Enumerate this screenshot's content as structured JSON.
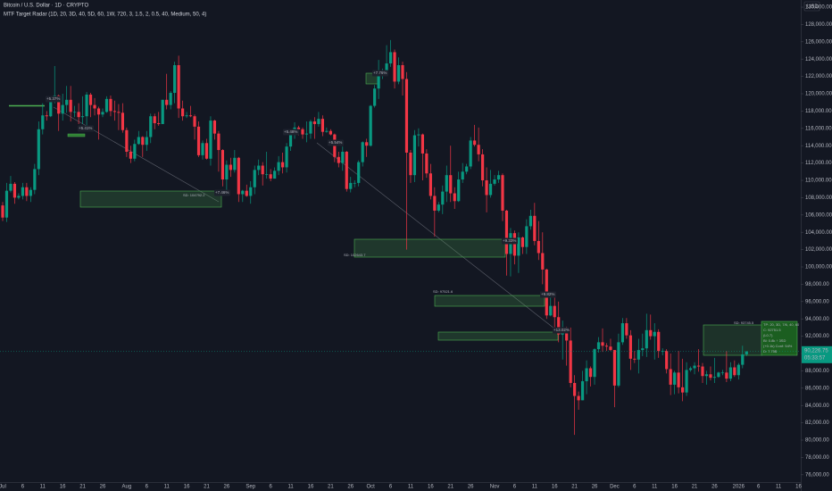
{
  "chart_data": {
    "type": "candlestick",
    "title": "Bitcoin / U.S. Dollar · 1D · CRYPTO",
    "subtitle": "MTF Target Radar (1D, 20, 3D, 40, 5D, 60, 1W, 720, 3, 1.5, 2, 0.5, 40, Medium, 50, 4)",
    "currency": "USD",
    "up_color": "#089981",
    "down_color": "#f23645",
    "grid": false,
    "categories": [
      "Jul",
      null,
      null,
      null,
      null,
      "6",
      null,
      null,
      null,
      null,
      "11",
      null,
      null,
      null,
      null,
      "16",
      null,
      null,
      null,
      null,
      "21",
      null,
      null,
      null,
      null,
      "26",
      null,
      null,
      null,
      null,
      null,
      "Aug",
      null,
      null,
      null,
      null,
      "6",
      null,
      null,
      null,
      null,
      "11",
      null,
      null,
      null,
      null,
      "16",
      null,
      null,
      null,
      null,
      "21",
      null,
      null,
      null,
      null,
      "26",
      null,
      null,
      null,
      null,
      null,
      "Sep",
      null,
      null,
      null,
      null,
      "6",
      null,
      null,
      null,
      null,
      "11",
      null,
      null,
      null,
      null,
      "16",
      null,
      null,
      null,
      null,
      "21",
      null,
      null,
      null,
      null,
      "26",
      null,
      null,
      null,
      null,
      "Oct",
      null,
      null,
      null,
      null,
      "6",
      null,
      null,
      null,
      null,
      "11",
      null,
      null,
      null,
      null,
      "16",
      null,
      null,
      null,
      null,
      "21",
      null,
      null,
      null,
      null,
      "26",
      null,
      null,
      null,
      null,
      null,
      "Nov",
      null,
      null,
      null,
      null,
      "6",
      null,
      null,
      null,
      null,
      "11",
      null,
      null,
      null,
      null,
      "16",
      null,
      null,
      null,
      null,
      "21",
      null,
      null,
      null,
      null,
      "26",
      null,
      null,
      null,
      null,
      "Dec",
      null,
      null,
      null,
      null,
      "6",
      null,
      null,
      null,
      null,
      "11",
      null,
      null,
      null,
      null,
      "16",
      null,
      null,
      null,
      null,
      "21",
      null,
      null,
      null,
      null,
      "26",
      null,
      null,
      null,
      null,
      null,
      "2026",
      null,
      null,
      null,
      null,
      "6",
      null,
      null,
      null,
      null,
      "11",
      null,
      null,
      null,
      null,
      "16"
    ],
    "open": [
      107100,
      105700,
      108800,
      109600,
      108000,
      108200,
      109200,
      108200,
      108900,
      111300,
      115900,
      117500,
      117400,
      119100,
      119800,
      117700,
      118700,
      119300,
      117900,
      117900,
      117300,
      117400,
      119900,
      118700,
      118300,
      117600,
      117900,
      119400,
      118000,
      117900,
      117800,
      115800,
      113300,
      112500,
      114200,
      115000,
      114100,
      115000,
      117400,
      116600,
      116500,
      119300,
      118700,
      120100,
      123300,
      118300,
      117400,
      117500,
      117400,
      116200,
      112900,
      114300,
      112500,
      116900,
      115400,
      113500,
      110100,
      111800,
      111200,
      112600,
      108400,
      108800,
      108200,
      109200,
      111200,
      111700,
      110700,
      110700,
      110200,
      111100,
      112100,
      111500,
      113900,
      115500,
      116100,
      115900,
      115300,
      115400,
      116800,
      116500,
      117100,
      115600,
      115700,
      115300,
      112700,
      112000,
      113300,
      109000,
      109700,
      109700,
      112100,
      114400,
      114000,
      118600,
      120600,
      122300,
      122400,
      123500,
      124800,
      121400,
      123300,
      121700,
      113200,
      110600,
      115200,
      115300,
      113100,
      110800,
      108200,
      106500,
      107200,
      108700,
      110600,
      108500,
      107600,
      110100,
      111000,
      111600,
      114600,
      114100,
      113000,
      110000,
      108300,
      109600,
      110100,
      110600,
      106500,
      101500,
      103900,
      101300,
      103400,
      102300,
      104700,
      105900,
      103000,
      101600,
      99700,
      94400,
      95500,
      94200,
      92200,
      92900,
      91500,
      86600,
      85100,
      84600,
      86800,
      88300,
      87300,
      90500,
      91300,
      90900,
      90800,
      90400,
      86300,
      91300,
      93500,
      92100,
      89400,
      89300,
      90400,
      90600,
      92700,
      92000,
      92500,
      90300,
      90300,
      88200,
      86400,
      87800,
      86100,
      85500,
      88100,
      88300,
      88600,
      88500,
      87400,
      87600,
      87200,
      87300,
      87800,
      87800,
      87100,
      88400,
      87500,
      88700,
      89900,
      null,
      null,
      null,
      null,
      null,
      null,
      null,
      null,
      null,
      null,
      null,
      null,
      null
    ],
    "high": [
      107500,
      109700,
      110500,
      109800,
      108500,
      109700,
      109700,
      109200,
      111900,
      116800,
      118900,
      118000,
      119500,
      123200,
      119900,
      120000,
      120900,
      120900,
      118600,
      118900,
      119700,
      120200,
      120100,
      119500,
      118500,
      118300,
      119700,
      119800,
      119200,
      118800,
      118900,
      116100,
      114000,
      114700,
      115700,
      115100,
      115700,
      117700,
      117700,
      117900,
      119300,
      122300,
      120300,
      123700,
      124400,
      119200,
      117900,
      118600,
      117600,
      116800,
      114600,
      114800,
      117400,
      117000,
      115700,
      113600,
      112300,
      112600,
      113500,
      112700,
      108900,
      109500,
      109900,
      111700,
      112400,
      112100,
      113300,
      111300,
      111500,
      112800,
      113200,
      114300,
      115600,
      116700,
      116300,
      116100,
      116800,
      117000,
      117300,
      117900,
      117500,
      116100,
      115900,
      115400,
      113300,
      113900,
      113400,
      110400,
      110000,
      112300,
      114500,
      114800,
      118700,
      121000,
      123900,
      122900,
      125600,
      126200,
      125100,
      124200,
      123700,
      122500,
      113500,
      115800,
      116000,
      115400,
      113600,
      111900,
      109200,
      107500,
      109400,
      111700,
      114000,
      109200,
      111000,
      112000,
      111900,
      115000,
      116400,
      116100,
      113600,
      111500,
      111200,
      110600,
      111100,
      110800,
      106600,
      104500,
      104200,
      104000,
      103500,
      105500,
      106600,
      107400,
      105300,
      104000,
      99800,
      96800,
      96600,
      96000,
      93800,
      93100,
      93000,
      87500,
      85600,
      88000,
      89200,
      88500,
      90600,
      91900,
      92900,
      91200,
      91700,
      90400,
      92300,
      94100,
      94100,
      92700,
      90300,
      91700,
      92300,
      94600,
      94500,
      93500,
      92800,
      90600,
      90500,
      90000,
      88000,
      90300,
      89400,
      89000,
      88500,
      89000,
      90500,
      88900,
      88000,
      88500,
      89500,
      87900,
      88100,
      90300,
      89000,
      89200,
      88900,
      90900,
      90300,
      null,
      null,
      null,
      null,
      null,
      null,
      null,
      null,
      null,
      null,
      null,
      null,
      null
    ],
    "low": [
      105300,
      105200,
      108600,
      107300,
      107800,
      107800,
      107600,
      107500,
      108400,
      110600,
      115300,
      116900,
      117300,
      118900,
      115700,
      116900,
      117800,
      116800,
      117300,
      116500,
      116500,
      116200,
      117300,
      117500,
      114700,
      117300,
      117800,
      117400,
      116900,
      115800,
      115500,
      112700,
      112000,
      112200,
      114100,
      112700,
      113400,
      114300,
      115900,
      116300,
      116500,
      118200,
      118200,
      118900,
      117200,
      116900,
      117200,
      117300,
      114700,
      112700,
      112400,
      112400,
      111700,
      114700,
      111000,
      109300,
      108700,
      110400,
      110900,
      107500,
      107500,
      108100,
      107300,
      108400,
      110600,
      109400,
      110200,
      109900,
      110200,
      110600,
      110800,
      110900,
      113400,
      114800,
      115200,
      114800,
      114400,
      114800,
      114800,
      116200,
      115100,
      115500,
      115200,
      112100,
      111500,
      111100,
      108700,
      108600,
      109200,
      109300,
      111600,
      112700,
      113900,
      118400,
      119400,
      121700,
      122200,
      123100,
      120600,
      121100,
      119800,
      102000,
      109700,
      109800,
      113900,
      110000,
      110300,
      107800,
      103500,
      106300,
      106100,
      107500,
      107500,
      106700,
      107500,
      109700,
      110700,
      111300,
      113900,
      112200,
      109300,
      106300,
      108000,
      109400,
      109700,
      105300,
      99000,
      98900,
      100300,
      99300,
      101500,
      101500,
      104300,
      102500,
      100800,
      98000,
      94000,
      94300,
      93000,
      91300,
      89300,
      88600,
      86100,
      80600,
      83500,
      84600,
      85300,
      86200,
      86400,
      90100,
      90200,
      90300,
      90300,
      83800,
      86100,
      91000,
      91700,
      88100,
      88900,
      87700,
      89700,
      89600,
      91600,
      89300,
      89500,
      89800,
      87700,
      85200,
      85300,
      85400,
      84500,
      85100,
      87900,
      87600,
      87900,
      86600,
      86400,
      86900,
      86600,
      87200,
      87500,
      86700,
      86800,
      87300,
      87000,
      88300,
      89700,
      null,
      null,
      null,
      null,
      null,
      null,
      null,
      null,
      null,
      null,
      null,
      null,
      null
    ],
    "close": [
      105700,
      108800,
      109600,
      108000,
      108200,
      109200,
      108200,
      108900,
      111300,
      115900,
      117500,
      117400,
      119100,
      119800,
      117700,
      118700,
      119300,
      117900,
      117900,
      117300,
      117400,
      119900,
      118700,
      118300,
      117600,
      117900,
      119400,
      118000,
      117900,
      117800,
      115800,
      113300,
      112500,
      114200,
      115000,
      114100,
      115000,
      117400,
      116600,
      116500,
      119300,
      118700,
      120100,
      123300,
      118300,
      117400,
      117500,
      117400,
      116200,
      112900,
      114300,
      112500,
      116900,
      115400,
      113500,
      110100,
      111800,
      111200,
      112600,
      108400,
      108800,
      108200,
      109200,
      111200,
      111700,
      110700,
      110700,
      110200,
      111100,
      112100,
      111500,
      113900,
      115500,
      116100,
      115900,
      115300,
      115400,
      116800,
      116500,
      117100,
      115600,
      115700,
      115300,
      112700,
      112000,
      113300,
      109000,
      109700,
      109700,
      112100,
      114400,
      114000,
      118600,
      120600,
      122300,
      122400,
      123500,
      124800,
      121400,
      123300,
      121700,
      113200,
      110600,
      115200,
      115300,
      113100,
      110800,
      108200,
      106500,
      107200,
      108700,
      110600,
      108500,
      107600,
      110100,
      111000,
      111600,
      114600,
      114100,
      113000,
      110000,
      108300,
      109600,
      110100,
      110600,
      106500,
      101500,
      103900,
      101300,
      103400,
      102300,
      104700,
      105900,
      103000,
      101600,
      99700,
      94400,
      95500,
      94200,
      92200,
      92900,
      91500,
      86600,
      85100,
      84600,
      86800,
      88300,
      87300,
      90500,
      91300,
      90900,
      90800,
      90400,
      86300,
      91300,
      93500,
      92100,
      89400,
      89300,
      90400,
      90600,
      92700,
      92000,
      92500,
      90300,
      90300,
      88200,
      86400,
      87800,
      86100,
      85500,
      88100,
      88300,
      88600,
      88500,
      87400,
      87600,
      87200,
      87300,
      87800,
      87800,
      87100,
      88400,
      87500,
      88700,
      89900,
      90226.75,
      null,
      null,
      null,
      null,
      null,
      null,
      null,
      null,
      null,
      null,
      null,
      null,
      null
    ],
    "last_price": {
      "value": 90226.75,
      "label": "90,226.75"
    },
    "countdown": "05:33:57",
    "ylim": [
      75155,
      130825
    ],
    "yticks": [
      {
        "value": 76000,
        "label": "76,000.00"
      },
      {
        "value": 78000,
        "label": "78,000.00"
      },
      {
        "value": 80000,
        "label": "80,000.00"
      },
      {
        "value": 82000,
        "label": "82,000.00"
      },
      {
        "value": 84000,
        "label": "84,000.00"
      },
      {
        "value": 86000,
        "label": "86,000.00"
      },
      {
        "value": 88000,
        "label": "88,000.00"
      },
      {
        "value": 90000,
        "label": "90,000.00"
      },
      {
        "value": 92000,
        "label": "92,000.00"
      },
      {
        "value": 94000,
        "label": "94,000.00"
      },
      {
        "value": 96000,
        "label": "96,000.00"
      },
      {
        "value": 98000,
        "label": "98,000.00"
      },
      {
        "value": 100000,
        "label": "100,000.00"
      },
      {
        "value": 102000,
        "label": "102,000.00"
      },
      {
        "value": 104000,
        "label": "104,000.00"
      },
      {
        "value": 106000,
        "label": "106,000.00"
      },
      {
        "value": 108000,
        "label": "108,000.00"
      },
      {
        "value": 110000,
        "label": "110,000.00"
      },
      {
        "value": 112000,
        "label": "112,000.00"
      },
      {
        "value": 114000,
        "label": "114,000.00"
      },
      {
        "value": 116000,
        "label": "116,000.00"
      },
      {
        "value": 118000,
        "label": "118,000.00"
      },
      {
        "value": 120000,
        "label": "120,000.00"
      },
      {
        "value": 122000,
        "label": "122,000.00"
      },
      {
        "value": 124000,
        "label": "124,000.00"
      },
      {
        "value": 126000,
        "label": "126,000.00"
      },
      {
        "value": 128000,
        "label": "128,000.00"
      },
      {
        "value": 130000,
        "label": "130,000.00"
      }
    ],
    "annotations": [
      "+5.37%",
      "+5.41%",
      "+7.46%",
      "+5.48%",
      "+5.54%",
      "+7.76%",
      "+9.33%",
      "+9.82%",
      "+13.02%"
    ],
    "levels": [
      "SD: 104792.2",
      "SD: 102643.7",
      "SD: 97521.6",
      "SD: 93745.5"
    ],
    "panel": [
      "TP: 20, 3D, 7/6, 40, 60",
      "C: 92751.5",
      "(L0.7)",
      "Bl: 0.8k ↑ 3SD",
      "(+0.1k) Conf: 54%",
      "D: 7.75$"
    ]
  }
}
